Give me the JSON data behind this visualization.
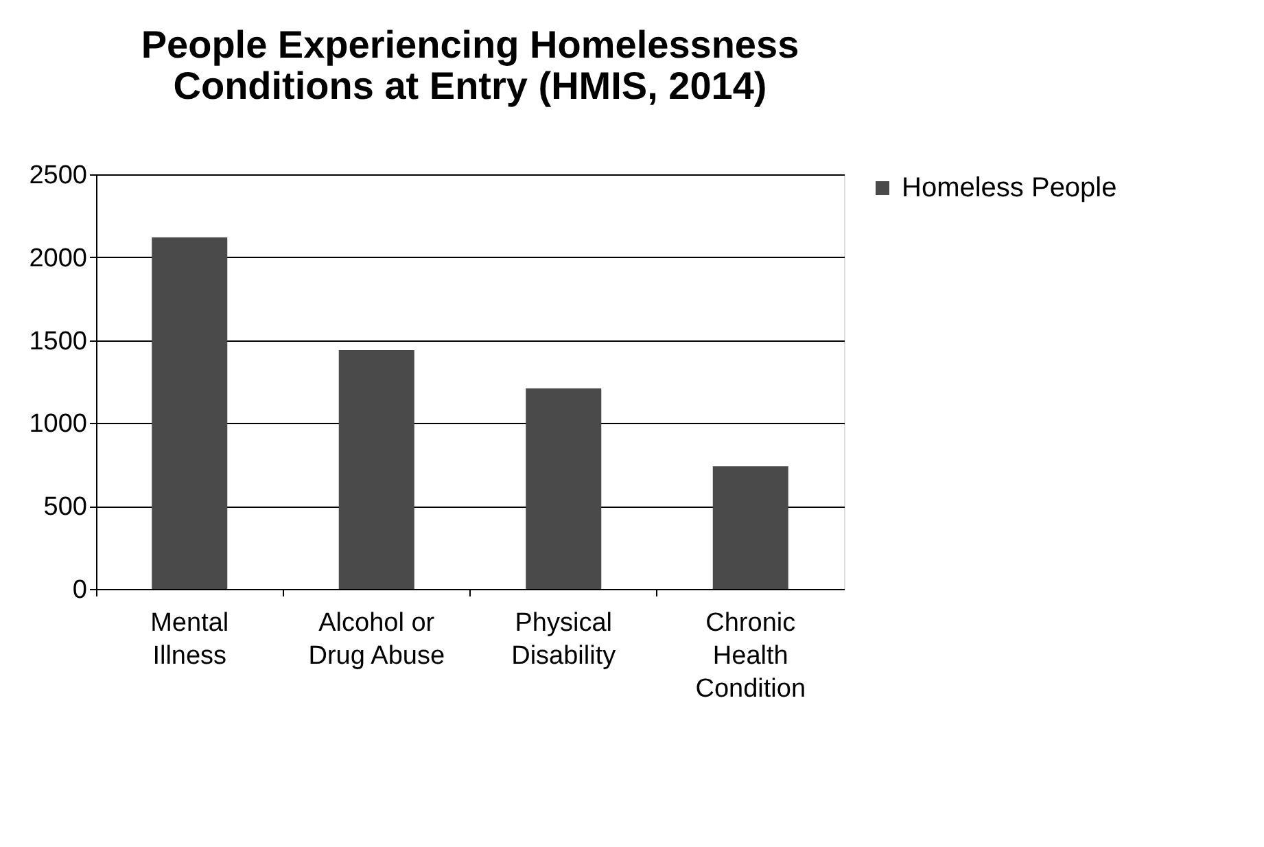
{
  "chart_data": {
    "type": "bar",
    "title": [
      "People Experiencing Homelessness",
      "Conditions at Entry (HMIS, 2014)"
    ],
    "categories": [
      "Mental Illness",
      "Alcohol or Drug Abuse",
      "Physical Disability",
      "Chronic Health Condition"
    ],
    "series": [
      {
        "name": "Homeless People",
        "color": "#4a4a4a",
        "values": [
          2120,
          1440,
          1210,
          740
        ]
      }
    ],
    "ylim": [
      0,
      2500
    ],
    "yticks": [
      0,
      500,
      1000,
      1500,
      2000,
      2500
    ],
    "grid": "y",
    "legend": "right"
  }
}
